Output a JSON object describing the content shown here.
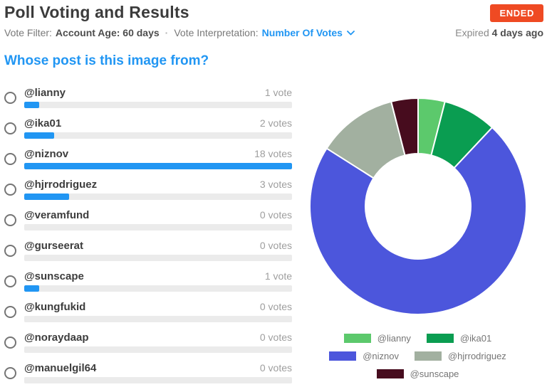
{
  "header": {
    "title": "Poll Voting and Results",
    "status_badge": "ENDED",
    "filter_label": "Vote Filter:",
    "filter_value": "Account Age: 60 days",
    "separator": "·",
    "interpretation_label": "Vote Interpretation:",
    "interpretation_value": "Number Of Votes",
    "expired_label": "Expired",
    "expired_value": "4 days ago"
  },
  "poll": {
    "question": "Whose post is this image from?",
    "options": [
      {
        "label": "@lianny",
        "votes": 1,
        "votes_label": "1 vote"
      },
      {
        "label": "@ika01",
        "votes": 2,
        "votes_label": "2 votes"
      },
      {
        "label": "@niznov",
        "votes": 18,
        "votes_label": "18 votes"
      },
      {
        "label": "@hjrrodriguez",
        "votes": 3,
        "votes_label": "3 votes"
      },
      {
        "label": "@veramfund",
        "votes": 0,
        "votes_label": "0 votes"
      },
      {
        "label": "@gurseerat",
        "votes": 0,
        "votes_label": "0 votes"
      },
      {
        "label": "@sunscape",
        "votes": 1,
        "votes_label": "1 vote"
      },
      {
        "label": "@kungfukid",
        "votes": 0,
        "votes_label": "0 votes"
      },
      {
        "label": "@noraydaap",
        "votes": 0,
        "votes_label": "0 votes"
      },
      {
        "label": "@manuelgil64",
        "votes": 0,
        "votes_label": "0 votes"
      }
    ]
  },
  "chart_data": {
    "type": "pie",
    "subtype": "donut",
    "total_votes": 25,
    "start_angle_deg": -90,
    "direction": "clockwise",
    "inner_radius_ratio": 0.49,
    "legend_position": "bottom",
    "series": [
      {
        "name": "@lianny",
        "value": 1,
        "color": "#5cc96c"
      },
      {
        "name": "@ika01",
        "value": 2,
        "color": "#0a9d51"
      },
      {
        "name": "@niznov",
        "value": 18,
        "color": "#4c56dc"
      },
      {
        "name": "@hjrrodriguez",
        "value": 3,
        "color": "#a2b0a0"
      },
      {
        "name": "@sunscape",
        "value": 1,
        "color": "#470c1e"
      }
    ]
  },
  "colors": {
    "accent_blue": "#2196f3",
    "badge_orange": "#ef4a23",
    "bar_track": "#ebebeb",
    "bar_fill": "#2196f3"
  }
}
